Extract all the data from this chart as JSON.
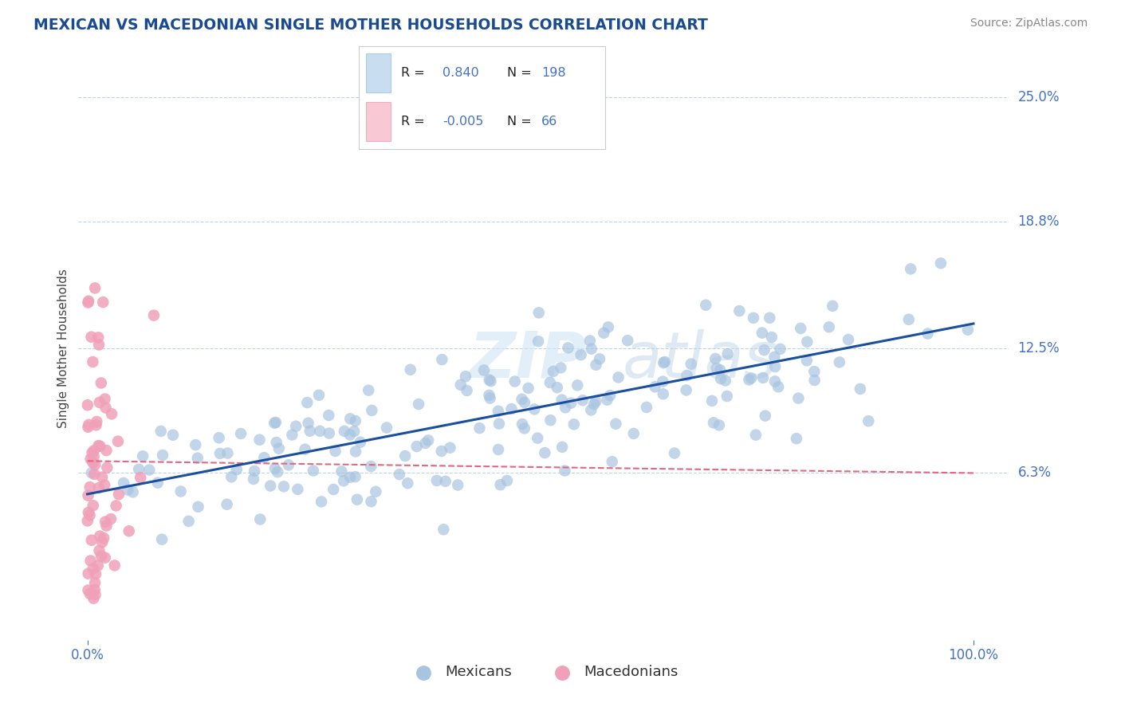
{
  "title": "MEXICAN VS MACEDONIAN SINGLE MOTHER HOUSEHOLDS CORRELATION CHART",
  "source": "Source: ZipAtlas.com",
  "ylabel": "Single Mother Households",
  "xlabel_mexicans": "Mexicans",
  "xlabel_macedonians": "Macedonians",
  "ytick_labels": [
    "6.3%",
    "12.5%",
    "18.8%",
    "25.0%"
  ],
  "ytick_values": [
    0.063,
    0.125,
    0.188,
    0.25
  ],
  "xtick_labels": [
    "0.0%",
    "100.0%"
  ],
  "r_mexican": 0.84,
  "n_mexican": 198,
  "r_macedonian": -0.005,
  "n_macedonian": 66,
  "mexican_color": "#a8c4e0",
  "macedonian_color": "#f0a0b8",
  "mexican_line_color": "#1a4fa0",
  "macedonian_line_color": "#e06880",
  "watermark_zip": "ZIP",
  "watermark_atlas": "atlas",
  "background_color": "#ffffff",
  "grid_color": "#c0d4e8",
  "legend_box_color_mexican": "#c8ddf0",
  "legend_box_color_macedonian": "#f8c8d4",
  "title_color": "#1a4a90",
  "label_color": "#4472c4",
  "seed": 7
}
